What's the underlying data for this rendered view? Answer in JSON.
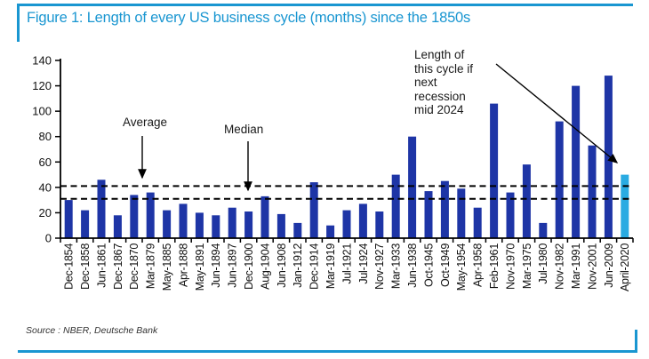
{
  "header": {
    "title": "Figure 1: Length of every US business cycle (months) since the 1850s"
  },
  "footer": {
    "source": "Source : NBER, Deutsche Bank"
  },
  "colors": {
    "accent_blue": "#1996d1",
    "bar_navy": "#1e35a6",
    "bar_highlight": "#29abe2",
    "axis_black": "#000000"
  },
  "chart_data": {
    "type": "bar",
    "title": "Figure 1: Length of every US business cycle (months) since the 1850s",
    "xlabel": "",
    "ylabel": "",
    "ylim": [
      0,
      140
    ],
    "ytick_step": 20,
    "grid": false,
    "legend": "none",
    "categories": [
      "Dec-1854",
      "Dec-1858",
      "Jun-1861",
      "Dec-1867",
      "Dec-1870",
      "Mar-1879",
      "May-1885",
      "Apr-1888",
      "May-1891",
      "Jun-1894",
      "Jun-1897",
      "Dec-1900",
      "Aug-1904",
      "Jun-1908",
      "Jan-1912",
      "Dec-1914",
      "Mar-1919",
      "Jul-1921",
      "Jul-1924",
      "Nov-1927",
      "Mar-1933",
      "Jun-1938",
      "Oct-1945",
      "Oct-1949",
      "May-1954",
      "Apr-1958",
      "Feb-1961",
      "Nov-1970",
      "Mar-1975",
      "Jul-1980",
      "Nov-1982",
      "Mar-1991",
      "Nov-2001",
      "Jun-2009",
      "April-2020"
    ],
    "values": [
      30,
      22,
      46,
      18,
      34,
      36,
      22,
      27,
      20,
      18,
      24,
      21,
      33,
      19,
      12,
      44,
      10,
      22,
      27,
      21,
      50,
      80,
      37,
      45,
      39,
      24,
      106,
      36,
      58,
      12,
      92,
      120,
      73,
      128,
      50
    ],
    "highlight_index": 34,
    "reference_lines": [
      {
        "name": "average",
        "label": "Average",
        "value": 41
      },
      {
        "name": "median",
        "label": "Median",
        "value": 31
      }
    ],
    "annotation": {
      "text": "Length of\nthis cycle if\nnext\nrecession\nmid 2024",
      "points_to": "April-2020"
    }
  }
}
